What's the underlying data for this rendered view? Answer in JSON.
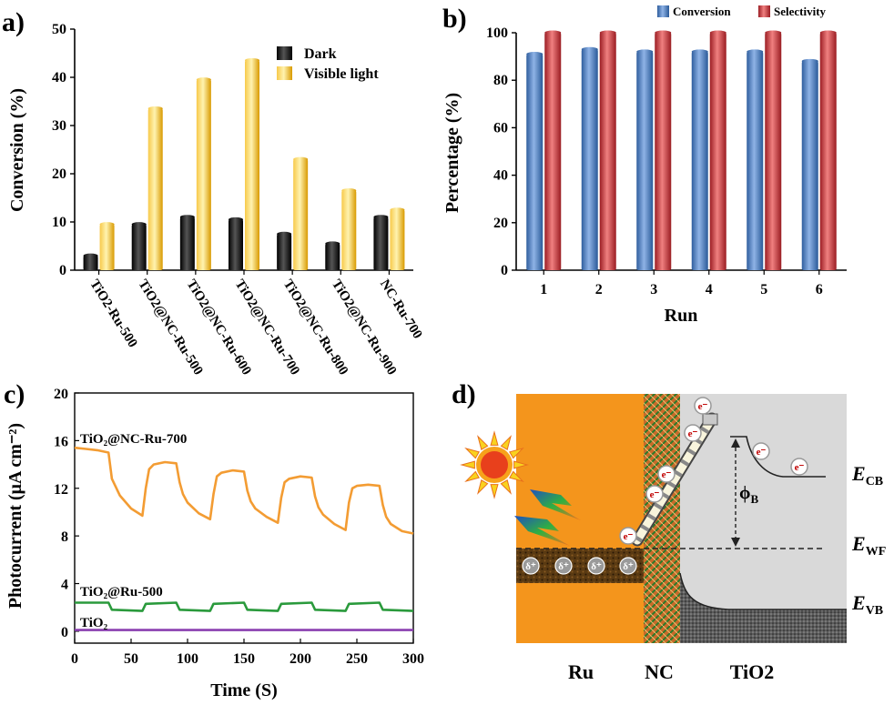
{
  "panels": {
    "a": "a)",
    "b": "b)",
    "c": "c)",
    "d": "d)"
  },
  "chart_data": [
    {
      "type": "bar",
      "panel": "a",
      "title": "",
      "xlabel": "",
      "ylabel": "Conversion (%)",
      "ylim": [
        0,
        50
      ],
      "yticks": [
        "0",
        "10",
        "20",
        "30",
        "40",
        "50"
      ],
      "categories": [
        "TiO2-Ru-500",
        "TiO2@NC-Ru-500",
        "TiO2@NC-Ru-600",
        "TiO2@NC-Ru-700",
        "TiO2@NC-Ru-800",
        "TiO2@NC-Ru-900",
        "NC-Ru-700"
      ],
      "series": [
        {
          "name": "Dark",
          "color": "#111111",
          "values": [
            3,
            9.5,
            11,
            10.5,
            7.5,
            5.5,
            11
          ]
        },
        {
          "name": "Visible light",
          "color": "#f4b400",
          "values": [
            9.5,
            33.5,
            39.5,
            43.5,
            23,
            16.5,
            12.5
          ]
        }
      ],
      "legend": [
        "Dark",
        "Visible light"
      ],
      "legend_position": "top-right"
    },
    {
      "type": "bar",
      "panel": "b",
      "title": "",
      "xlabel": "Run",
      "ylabel": "Percentage (%)",
      "ylim": [
        0,
        100
      ],
      "yticks": [
        "0",
        "20",
        "40",
        "60",
        "80",
        "100"
      ],
      "categories": [
        "1",
        "2",
        "3",
        "4",
        "5",
        "6"
      ],
      "series": [
        {
          "name": "Conversion",
          "color": "#4a7cc4",
          "values": [
            91,
            93,
            92,
            92,
            92,
            88
          ]
        },
        {
          "name": "Selectivity",
          "color": "#c8323a",
          "values": [
            100,
            100,
            100,
            100,
            100,
            100
          ]
        }
      ],
      "legend": [
        "Conversion",
        "Selectivity"
      ],
      "legend_position": "top"
    },
    {
      "type": "line",
      "panel": "c",
      "title": "",
      "xlabel": "Time (S)",
      "ylabel": "Photocurrent (μA cm⁻²)",
      "xlim": [
        0,
        300
      ],
      "ylim": [
        -1,
        20
      ],
      "xticks": [
        "0",
        "50",
        "100",
        "150",
        "200",
        "250",
        "300"
      ],
      "yticks": [
        "0",
        "4",
        "8",
        "12",
        "16",
        "20"
      ],
      "series": [
        {
          "name": "TiO₂@NC-Ru-700",
          "color": "#f39c33",
          "x": [
            0,
            10,
            20,
            30,
            33,
            40,
            50,
            60,
            63,
            66,
            70,
            80,
            90,
            93,
            96,
            100,
            110,
            120,
            123,
            126,
            130,
            140,
            150,
            153,
            156,
            160,
            170,
            180,
            183,
            186,
            190,
            200,
            210,
            213,
            216,
            220,
            230,
            240,
            243,
            246,
            250,
            260,
            270,
            273,
            276,
            280,
            290,
            300
          ],
          "y": [
            15.4,
            15.3,
            15.2,
            15.0,
            12.8,
            11.4,
            10.3,
            9.7,
            12.0,
            13.6,
            14.0,
            14.2,
            14.1,
            12.5,
            11.5,
            10.8,
            9.9,
            9.4,
            11.5,
            13.0,
            13.3,
            13.5,
            13.4,
            11.8,
            10.9,
            10.3,
            9.6,
            9.1,
            11.2,
            12.5,
            12.8,
            13.0,
            12.9,
            11.3,
            10.4,
            9.8,
            9.0,
            8.5,
            10.8,
            12.0,
            12.2,
            12.3,
            12.2,
            10.6,
            9.6,
            9.0,
            8.4,
            8.2
          ]
        },
        {
          "name": "TiO₂@Ru-500",
          "color": "#2a9a3c",
          "x": [
            0,
            30,
            33,
            60,
            63,
            90,
            93,
            120,
            123,
            150,
            153,
            180,
            183,
            210,
            213,
            240,
            243,
            270,
            273,
            300
          ],
          "y": [
            2.4,
            2.4,
            1.8,
            1.7,
            2.3,
            2.4,
            1.8,
            1.7,
            2.3,
            2.4,
            1.8,
            1.7,
            2.3,
            2.4,
            1.8,
            1.7,
            2.3,
            2.4,
            1.8,
            1.7
          ]
        },
        {
          "name": "TiO₂",
          "color": "#8a3fb0",
          "x": [
            0,
            300
          ],
          "y": [
            0.1,
            0.1
          ]
        }
      ],
      "labels": [
        "TiO₂@NC-Ru-700",
        "TiO₂@Ru-500",
        "TiO₂"
      ]
    }
  ],
  "diagram": {
    "regions": [
      "Ru",
      "NC",
      "TiO2"
    ],
    "tio2_sub": "2",
    "levels": {
      "ecb": "E",
      "ecb_sub": "CB",
      "ewf": "E",
      "ewf_sub": "WF",
      "evb": "E",
      "evb_sub": "VB"
    },
    "barrier": "ϕ",
    "barrier_sub": "B",
    "electron": "e⁻",
    "delta": "δ⁺"
  }
}
